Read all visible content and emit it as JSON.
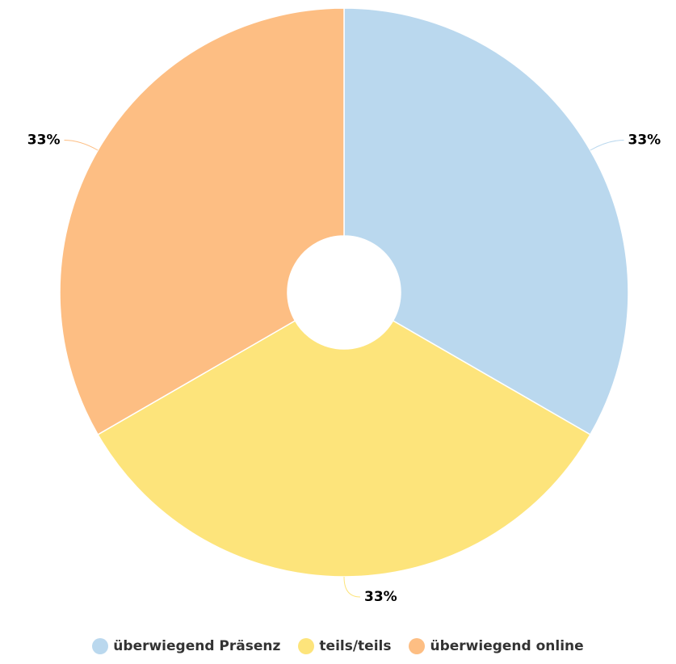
{
  "chart_data": {
    "type": "donut",
    "categories": [
      "überwiegend Präsenz",
      "teils/teils",
      "überwiegend online"
    ],
    "values": [
      33,
      33,
      33
    ],
    "value_labels": [
      "33%",
      "33%",
      "33%"
    ],
    "colors": [
      "#bad8ee",
      "#fde47b",
      "#fdbe83"
    ],
    "legend": "bottom"
  }
}
